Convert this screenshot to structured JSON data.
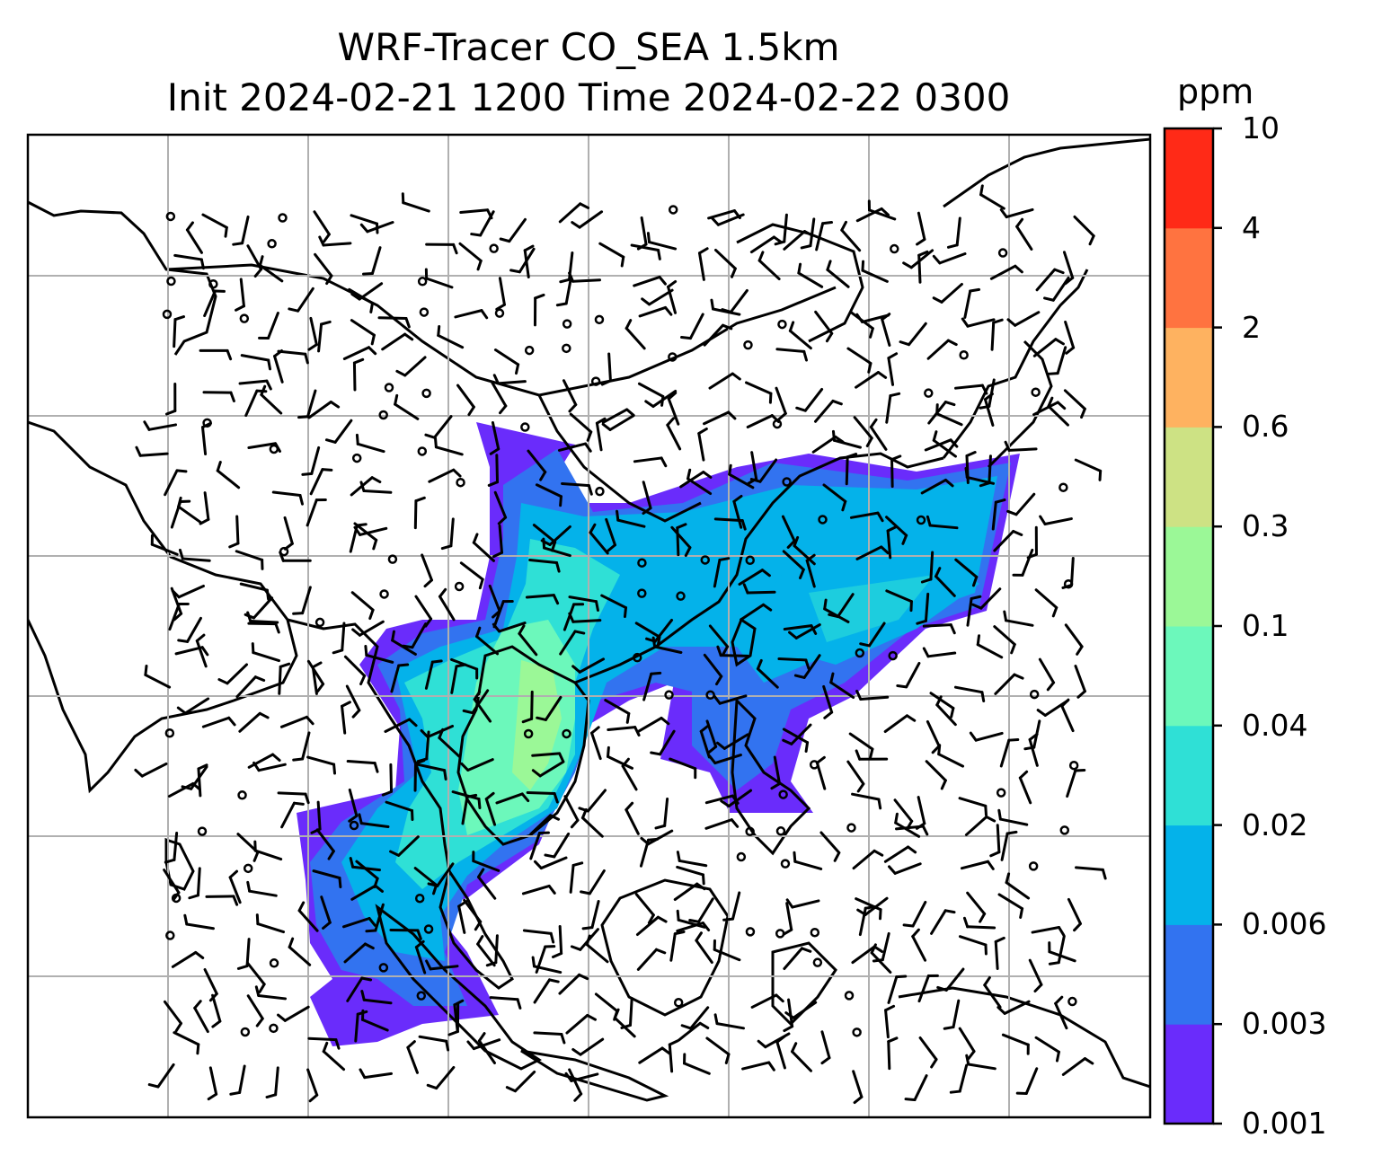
{
  "title": {
    "line1": "WRF-Tracer CO_SEA 1.5km",
    "line2": "Init 2024-02-21 1200 Time 2024-02-22 0300"
  },
  "colorbar": {
    "units": "ppm",
    "levels": [
      "0.001",
      "0.003",
      "0.006",
      "0.02",
      "0.04",
      "0.1",
      "0.3",
      "0.6",
      "2",
      "4",
      "10"
    ],
    "colors": [
      "#6a2cfb",
      "#3273f0",
      "#04b2ea",
      "#2fe0d6",
      "#6cf8bb",
      "#9bf897",
      "#cde284",
      "#feb260",
      "#ff7340",
      "#ff2a17"
    ]
  },
  "map": {
    "grid": true,
    "basemap": "coastlines and country borders",
    "wind_symbols": "wind barbs",
    "calm_symbol": "circle"
  }
}
